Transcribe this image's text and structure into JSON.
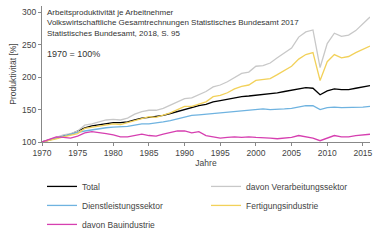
{
  "chart_data": {
    "type": "line",
    "title": "Arbeitsproduktivität je Arbeitnehmer",
    "subtitle": [
      "Volkswirtschaftliche Gesamtrechnungen Statistisches Bundesamt 2017",
      "Statistisches Bundesamt, 2018, S. 95"
    ],
    "annotations": [
      "1970 = 100%"
    ],
    "x_label": "Jahre",
    "y_label": "Produktivität [%]",
    "x": [
      1970,
      1971,
      1972,
      1973,
      1974,
      1975,
      1976,
      1977,
      1978,
      1979,
      1980,
      1981,
      1982,
      1983,
      1984,
      1985,
      1986,
      1987,
      1988,
      1989,
      1990,
      1991,
      1992,
      1993,
      1994,
      1995,
      1996,
      1997,
      1998,
      1999,
      2000,
      2001,
      2002,
      2003,
      2004,
      2005,
      2006,
      2007,
      2008,
      2009,
      2010,
      2011,
      2012,
      2013,
      2014,
      2015,
      2016
    ],
    "series": [
      {
        "name": "Total",
        "color": "#000000",
        "values": [
          100,
          103,
          106,
          109,
          112,
          117,
          122,
          125,
          127,
          129,
          130,
          130,
          131,
          134,
          137,
          138,
          139,
          141,
          144,
          147,
          150,
          154,
          156,
          158,
          162,
          164,
          166,
          169,
          170,
          171,
          172,
          173,
          174,
          176,
          178,
          180,
          183,
          184,
          183,
          173,
          179,
          182,
          181,
          181,
          183,
          185,
          187
        ]
      },
      {
        "name": "davon Verarbeitungssektor",
        "color": "#c8c8c8",
        "values": [
          100,
          103,
          107,
          111,
          113,
          117,
          126,
          128,
          131,
          134,
          135,
          134,
          137,
          143,
          147,
          149,
          149,
          152,
          157,
          162,
          167,
          168,
          173,
          178,
          185,
          188,
          193,
          200,
          206,
          208,
          217,
          218,
          222,
          230,
          237,
          245,
          262,
          270,
          273,
          215,
          252,
          268,
          263,
          265,
          272,
          282,
          293
        ]
      },
      {
        "name": "Dienstleistungssektor",
        "color": "#6fb3e0",
        "values": [
          100,
          103,
          107,
          110,
          113,
          115,
          117,
          119,
          120,
          122,
          123,
          123,
          124,
          126,
          128,
          128,
          129,
          131,
          133,
          136,
          138,
          141,
          142,
          143,
          145,
          146,
          147,
          148,
          148,
          149,
          150,
          151,
          150,
          150,
          151,
          152,
          154,
          156,
          156,
          150,
          153,
          154,
          153,
          153,
          154,
          154,
          155
        ]
      },
      {
        "name": "Fertigungsindustrie",
        "color": "#f2d15a",
        "values": [
          100,
          102,
          105,
          108,
          110,
          113,
          121,
          123,
          125,
          127,
          128,
          127,
          130,
          134,
          137,
          139,
          138,
          141,
          145,
          150,
          155,
          155,
          158,
          162,
          170,
          172,
          176,
          182,
          186,
          188,
          195,
          196,
          198,
          204,
          210,
          217,
          228,
          235,
          238,
          195,
          224,
          235,
          230,
          232,
          238,
          243,
          248
        ]
      },
      {
        "name": "davon Bauindustrie",
        "color": "#d63fb0",
        "values": [
          100,
          104,
          108,
          107,
          106,
          109,
          114,
          116,
          115,
          113,
          111,
          108,
          108,
          110,
          112,
          110,
          109,
          112,
          115,
          117,
          117,
          114,
          116,
          110,
          108,
          106,
          107,
          108,
          107,
          108,
          107,
          107,
          106,
          105,
          106,
          107,
          110,
          108,
          106,
          102,
          106,
          110,
          108,
          108,
          110,
          111,
          112
        ]
      }
    ],
    "xlim": [
      1970,
      2016
    ],
    "xticks": [
      1970,
      1975,
      1980,
      1985,
      1990,
      1995,
      2000,
      2005,
      2010,
      2015
    ],
    "ylim": [
      100,
      310
    ],
    "yticks": [
      100,
      150,
      200,
      250,
      300
    ],
    "grid": false,
    "legend": "bottom"
  }
}
